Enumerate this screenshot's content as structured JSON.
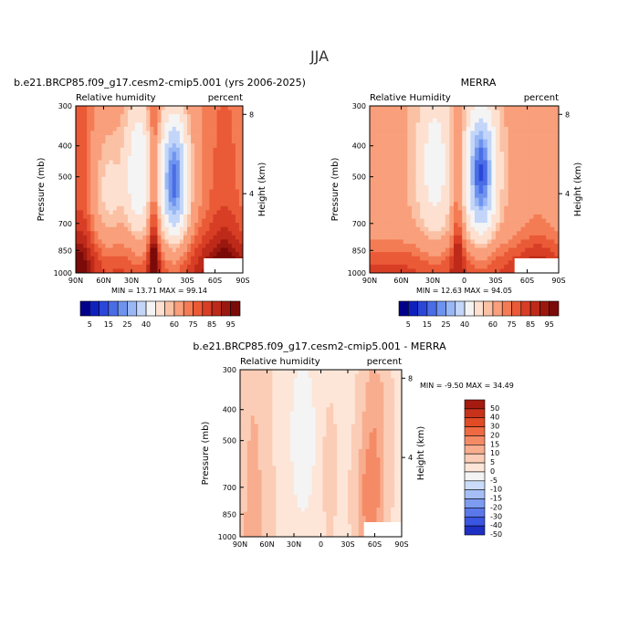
{
  "page": {
    "title": "JJA"
  },
  "colors": {
    "abs_scale": [
      "#00008b",
      "#0f21bd",
      "#2b47d9",
      "#4a6de6",
      "#6e93ef",
      "#99b7f5",
      "#c3d6f9",
      "#f4f4f4",
      "#fde0d0",
      "#fbc1a4",
      "#f99f7b",
      "#f47c55",
      "#ea5a37",
      "#d83e25",
      "#bd2a19",
      "#9b180f",
      "#7a0b08"
    ],
    "diff_scale": [
      "#00008b",
      "#1e2fc4",
      "#3a55e0",
      "#5a78ea",
      "#7d9bf1",
      "#a5bff6",
      "#cbdcfa",
      "#f4f4f4",
      "#fde6d8",
      "#fbcdb6",
      "#f8ad8e",
      "#f58b66",
      "#ee6a42",
      "#e04b26",
      "#c8321a",
      "#a51b0f",
      "#7a0b08"
    ],
    "background": "#ffffff"
  },
  "chart_data": [
    {
      "type": "heatmap",
      "panel": "model",
      "title": "b.e21.BRCP85.f09_g17.cesm2-cmip5.001 (yrs 2006-2025)",
      "left_label": "Relative humidity",
      "right_label": "percent",
      "ylabel": "Pressure (mb)",
      "y2label": "Height (km)",
      "x_ticks": [
        "90N",
        "60N",
        "30N",
        "0",
        "30S",
        "60S",
        "90S"
      ],
      "x_values": [
        90,
        60,
        30,
        0,
        -30,
        -60,
        -90
      ],
      "y_ticks": [
        "300",
        "400",
        "500",
        "700",
        "850",
        "1000"
      ],
      "y_values": [
        300,
        400,
        500,
        700,
        850,
        1000
      ],
      "y2_ticks": [
        "8",
        "4"
      ],
      "y2_values": [
        8,
        4
      ],
      "xlim": [
        90,
        -90
      ],
      "ylim": [
        1000,
        300
      ],
      "y_scale": "log",
      "stats": {
        "min_label": "MIN =",
        "min": "13.71",
        "max_label": "MAX =",
        "max": "99.14"
      },
      "colorbar": {
        "orientation": "horizontal",
        "labels": [
          "5",
          "15",
          "25",
          "40",
          "60",
          "75",
          "85",
          "95"
        ]
      }
    },
    {
      "type": "heatmap",
      "panel": "obs",
      "title": "MERRA",
      "left_label": "Relative Humidity",
      "right_label": "percent",
      "ylabel": "Pressure (mb)",
      "y2label": "Height (km)",
      "x_ticks": [
        "90N",
        "60N",
        "30N",
        "0",
        "30S",
        "60S",
        "90S"
      ],
      "x_values": [
        90,
        60,
        30,
        0,
        -30,
        -60,
        -90
      ],
      "y_ticks": [
        "300",
        "400",
        "500",
        "700",
        "850",
        "1000"
      ],
      "y_values": [
        300,
        400,
        500,
        700,
        850,
        1000
      ],
      "y2_ticks": [
        "8",
        "4"
      ],
      "y2_values": [
        8,
        4
      ],
      "xlim": [
        90,
        -90
      ],
      "ylim": [
        1000,
        300
      ],
      "y_scale": "log",
      "stats": {
        "min_label": "MIN =",
        "min": "12.63",
        "max_label": "MAX =",
        "max": "94.05"
      },
      "colorbar": {
        "orientation": "horizontal",
        "labels": [
          "5",
          "15",
          "25",
          "40",
          "60",
          "75",
          "85",
          "95"
        ]
      }
    },
    {
      "type": "heatmap",
      "panel": "diff",
      "title": "b.e21.BRCP85.f09_g17.cesm2-cmip5.001 - MERRA",
      "left_label": "Relative humidity",
      "right_label": "percent",
      "ylabel": "Pressure (mb)",
      "y2label": "Height (km)",
      "x_ticks": [
        "90N",
        "60N",
        "30N",
        "0",
        "30S",
        "60S",
        "90S"
      ],
      "x_values": [
        90,
        60,
        30,
        0,
        -30,
        -60,
        -90
      ],
      "y_ticks": [
        "300",
        "400",
        "500",
        "700",
        "850",
        "1000"
      ],
      "y_values": [
        300,
        400,
        500,
        700,
        850,
        1000
      ],
      "y2_ticks": [
        "8",
        "4"
      ],
      "y2_values": [
        8,
        4
      ],
      "xlim": [
        90,
        -90
      ],
      "ylim": [
        1000,
        300
      ],
      "y_scale": "log",
      "stats": {
        "min_label": "MIN =",
        "min": "-9.50",
        "max_label": "MAX =",
        "max": "34.49"
      },
      "colorbar": {
        "orientation": "vertical",
        "labels": [
          "50",
          "40",
          "30",
          "20",
          "15",
          "10",
          "5",
          "0",
          "-5",
          "-10",
          "-15",
          "-20",
          "-30",
          "-40",
          "-50"
        ]
      }
    }
  ]
}
